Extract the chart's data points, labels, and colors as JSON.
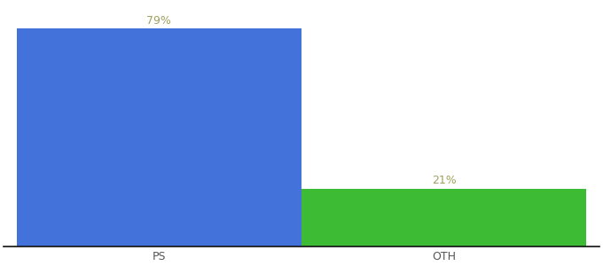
{
  "categories": [
    "PS",
    "OTH"
  ],
  "values": [
    79,
    21
  ],
  "bar_colors": [
    "#4472db",
    "#3dbb35"
  ],
  "label_texts": [
    "79%",
    "21%"
  ],
  "label_color": "#a0a060",
  "xlabel_fontsize": 9,
  "label_fontsize": 9,
  "ylim": [
    0,
    88
  ],
  "background_color": "#ffffff",
  "bar_width": 0.55,
  "spine_color": "#111111",
  "x_positions": [
    0.3,
    0.85
  ],
  "xlim": [
    0.0,
    1.15
  ]
}
